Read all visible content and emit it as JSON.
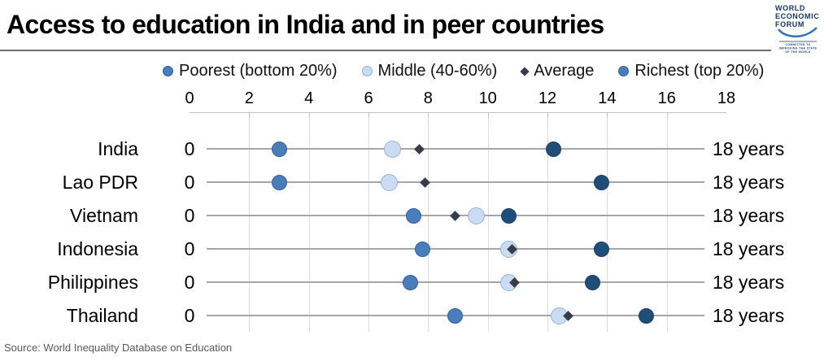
{
  "header": {
    "title": "Access to education in India and in peer countries",
    "logo": {
      "line1": "WORLD",
      "line2": "ECONOMIC",
      "line3": "FORUM",
      "tag1": "COMMITTED TO",
      "tag2": "IMPROVING THE STATE",
      "tag3": "OF THE WORLD",
      "text_color": "#15365e",
      "swoosh_color": "#2e75b6"
    }
  },
  "source": "Source: World Inequality Database on Education",
  "chart_data": {
    "type": "scatter",
    "title": "Access to education in India and in peer countries",
    "unit": "years",
    "xlabel": "",
    "ylabel": "",
    "xlim": [
      0,
      18
    ],
    "x_ticks": [
      0,
      2,
      4,
      6,
      8,
      10,
      12,
      14,
      16,
      18
    ],
    "axis_position": "top",
    "grid": true,
    "legend_position": "top",
    "row_left_label": "0",
    "row_right_label": "18 years",
    "categories": [
      "India",
      "Lao PDR",
      "Vietnam",
      "Indonesia",
      "Philippines",
      "Thailand"
    ],
    "series": [
      {
        "name": "Poorest (bottom 20%)",
        "marker": "circle",
        "color": "#4a7eba",
        "border": "#35619c",
        "size": 19,
        "z": 2,
        "values": [
          3.0,
          3.0,
          7.5,
          7.8,
          7.4,
          8.9
        ]
      },
      {
        "name": "Middle (40-60%)",
        "marker": "circle",
        "color": "#cbdcf2",
        "border": "#8fb3e0",
        "size": 21,
        "z": 2,
        "values": [
          6.8,
          6.7,
          9.6,
          10.7,
          10.7,
          12.4
        ]
      },
      {
        "name": "Average",
        "marker": "diamond",
        "color": "#363d49",
        "size": 9,
        "z": 4,
        "values": [
          7.7,
          7.9,
          8.9,
          10.8,
          10.9,
          12.7
        ]
      },
      {
        "name": "Richest (top 20%)",
        "marker": "circle",
        "color": "#1f4e79",
        "border": "#1a4168",
        "legend_color": "#4a7eba",
        "legend_border": "#35619c",
        "size": 19,
        "z": 3,
        "values": [
          12.2,
          13.8,
          10.7,
          13.8,
          13.5,
          15.3
        ]
      }
    ]
  }
}
